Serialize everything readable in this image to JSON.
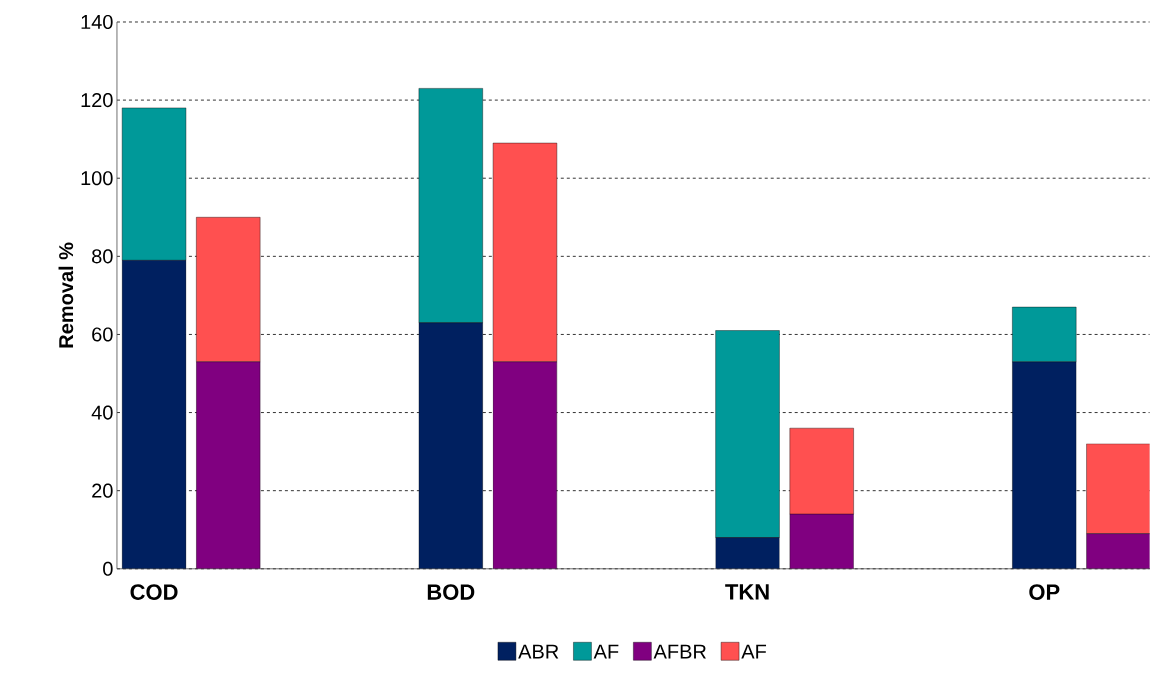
{
  "chart_data": {
    "type": "bar",
    "stacked": true,
    "ylabel": "Removal %",
    "categories": [
      "COD",
      null,
      "BOD",
      null,
      "TKN",
      null,
      "OP",
      null
    ],
    "series": [
      {
        "name": "ABR",
        "color": "#002060",
        "values": [
          79,
          null,
          63,
          null,
          8,
          null,
          53,
          null
        ]
      },
      {
        "name": "AF",
        "color": "#009999",
        "values": [
          39,
          null,
          60,
          null,
          53,
          null,
          14,
          null
        ]
      },
      {
        "name": "AFBR",
        "color": "#800080",
        "values": [
          null,
          53,
          null,
          53,
          null,
          14,
          null,
          9
        ]
      },
      {
        "name": "AF",
        "color": "#ff5050",
        "values": [
          null,
          37,
          null,
          56,
          null,
          22,
          null,
          23
        ]
      }
    ],
    "ylim": [
      0,
      140
    ],
    "yticks": [
      0,
      20,
      40,
      60,
      80,
      100,
      120,
      140
    ],
    "grid": "y",
    "legend": "bottom"
  }
}
